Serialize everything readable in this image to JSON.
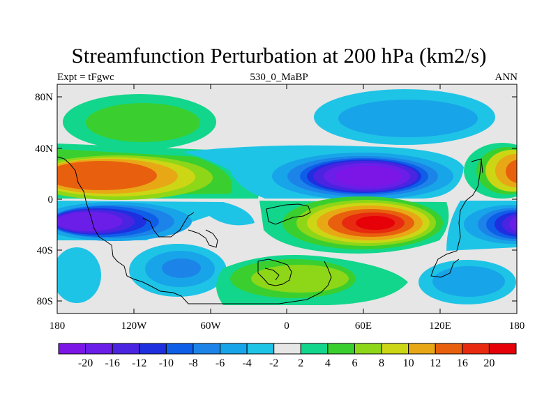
{
  "title": "Streamfunction Perturbation at 200 hPa (km2/s)",
  "left_label": "Expt = tFgwc",
  "center_label": "530_0_MaBP",
  "right_label": "ANN",
  "lat_ticks": [
    "80N",
    "40N",
    "0",
    "40S",
    "80S"
  ],
  "lon_ticks": [
    "180",
    "120W",
    "60W",
    "0",
    "60E",
    "120E",
    "180"
  ],
  "colorbar": {
    "labels": [
      "-20",
      "-16",
      "-12",
      "-10",
      "-8",
      "-6",
      "-4",
      "-2",
      "2",
      "4",
      "6",
      "8",
      "10",
      "12",
      "16",
      "20"
    ],
    "colors": [
      "#7b16e6",
      "#6a1ee8",
      "#4a24e0",
      "#1e2fe0",
      "#0f5ee8",
      "#1c84e8",
      "#18a4e8",
      "#1ec4e6",
      "#e6e6e6",
      "#12d68c",
      "#3acf2e",
      "#8ed618",
      "#ccd614",
      "#e8a816",
      "#e8600e",
      "#e82a10",
      "#e60008"
    ]
  }
}
